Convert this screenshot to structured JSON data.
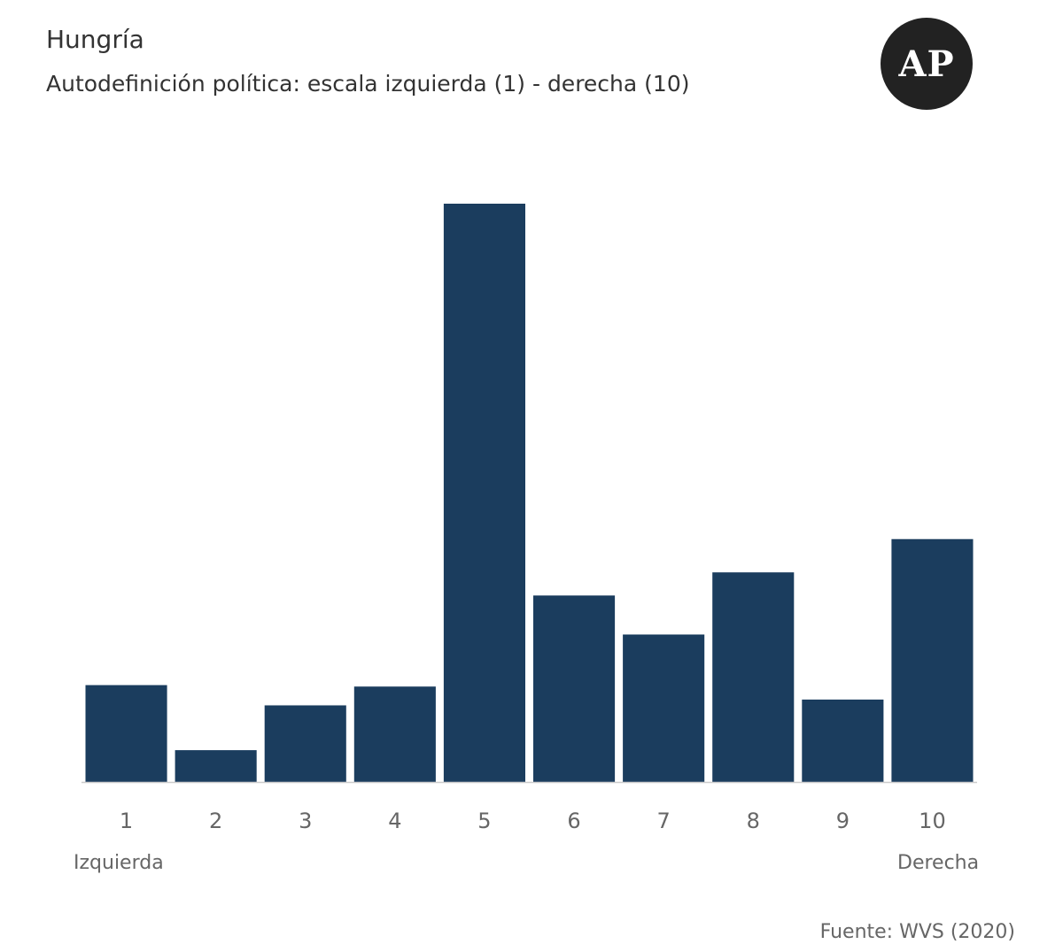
{
  "header": {
    "title": "Hungría",
    "subtitle": "Autodefinición política: escala izquierda (1) - derecha (10)"
  },
  "logo": {
    "text": "AP"
  },
  "axis_labels": {
    "left_end": "Izquierda",
    "right_end": "Derecha"
  },
  "footer": {
    "source": "Fuente: WVS (2020)"
  },
  "colors": {
    "bar": "#1b3d5e",
    "axis": "#cccccc"
  },
  "chart_data": {
    "type": "bar",
    "categories": [
      "1",
      "2",
      "3",
      "4",
      "5",
      "6",
      "7",
      "8",
      "9",
      "10"
    ],
    "values": [
      6.7,
      2.2,
      5.3,
      6.6,
      40.0,
      12.9,
      10.2,
      14.5,
      5.7,
      16.8
    ],
    "title": "Hungría",
    "subtitle": "Autodefinición política: escala izquierda (1) - derecha (10)",
    "xlabel": "",
    "ylabel": "",
    "ylim": [
      0,
      40
    ],
    "grid": false,
    "legend": "none"
  }
}
